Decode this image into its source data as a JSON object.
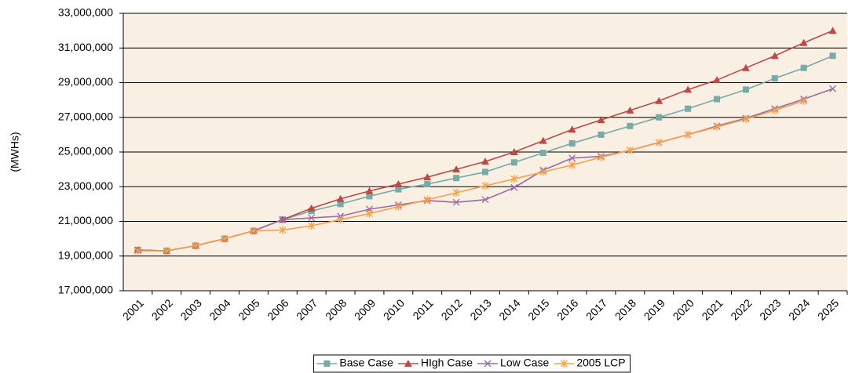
{
  "chart_data": {
    "type": "line",
    "y_label": "(MWHs)",
    "categories": [
      "2001",
      "2002",
      "2003",
      "2004",
      "2005",
      "2006",
      "2007",
      "2008",
      "2009",
      "2010",
      "2011",
      "2012",
      "2013",
      "2014",
      "2015",
      "2016",
      "2017",
      "2018",
      "2019",
      "2020",
      "2021",
      "2022",
      "2023",
      "2024",
      "2025"
    ],
    "ylim": [
      17000000,
      33000000
    ],
    "yticks": [
      {
        "value": 17000000,
        "label": "17,000,000"
      },
      {
        "value": 19000000,
        "label": "19,000,000"
      },
      {
        "value": 21000000,
        "label": "21,000,000"
      },
      {
        "value": 23000000,
        "label": "23,000,000"
      },
      {
        "value": 25000000,
        "label": "25,000,000"
      },
      {
        "value": 27000000,
        "label": "27,000,000"
      },
      {
        "value": 29000000,
        "label": "29,000,000"
      },
      {
        "value": 31000000,
        "label": "31,000,000"
      },
      {
        "value": 33000000,
        "label": "33,000,000"
      }
    ],
    "grid": true,
    "plot_background": "#f9efe2",
    "legend": "bottom",
    "series": [
      {
        "name": "Base Case",
        "color": "#77aaa8",
        "marker": "square",
        "values": [
          19350000,
          19300000,
          19600000,
          20000000,
          20450000,
          21100000,
          21600000,
          22000000,
          22450000,
          22850000,
          23150000,
          23500000,
          23850000,
          24400000,
          24950000,
          25500000,
          26000000,
          26500000,
          27000000,
          27500000,
          28050000,
          28600000,
          29250000,
          29850000,
          30550000
        ]
      },
      {
        "name": "HIgh Case",
        "color": "#bb4a47",
        "marker": "triangle",
        "values": [
          19350000,
          19300000,
          19600000,
          20000000,
          20450000,
          21100000,
          21750000,
          22300000,
          22750000,
          23150000,
          23550000,
          24000000,
          24450000,
          25000000,
          25650000,
          26300000,
          26850000,
          27400000,
          27950000,
          28600000,
          29150000,
          29850000,
          30550000,
          31300000,
          32000000
        ]
      },
      {
        "name": "Low Case",
        "color": "#9a6aa8",
        "marker": "x",
        "values": [
          19350000,
          19300000,
          19600000,
          20000000,
          20450000,
          21100000,
          21200000,
          21300000,
          21700000,
          21950000,
          22200000,
          22100000,
          22250000,
          22950000,
          23950000,
          24650000,
          24750000,
          25100000,
          25550000,
          26000000,
          26500000,
          26950000,
          27500000,
          28050000,
          28650000
        ]
      },
      {
        "name": "2005 LCP",
        "color": "#f5a04a",
        "marker": "star",
        "values": [
          19300000,
          19300000,
          19600000,
          20000000,
          20450000,
          20500000,
          20750000,
          21100000,
          21450000,
          21850000,
          22250000,
          22650000,
          23050000,
          23450000,
          23850000,
          24250000,
          24700000,
          25100000,
          25550000,
          26000000,
          26450000,
          26900000,
          27400000,
          27950000,
          null
        ]
      }
    ]
  }
}
